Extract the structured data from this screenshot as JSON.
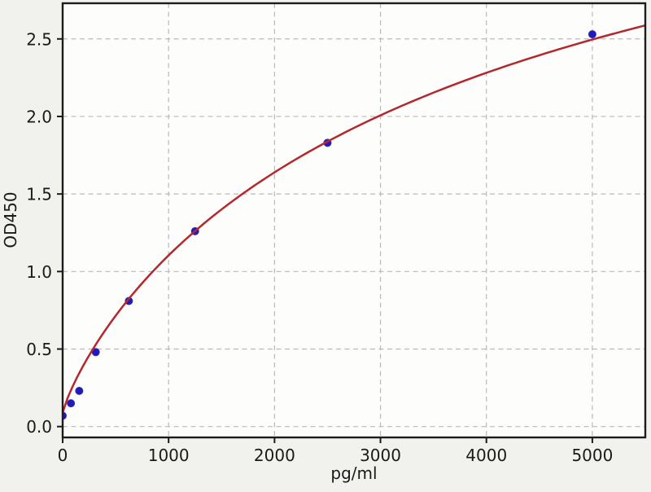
{
  "chart_data": {
    "type": "scatter",
    "xlabel": "pg/ml",
    "ylabel": "OD450",
    "xlim": [
      0,
      5500
    ],
    "ylim": [
      -0.07,
      2.73
    ],
    "grid": true,
    "legend": "none",
    "x_ticks": [
      {
        "value": 0,
        "label": "0"
      },
      {
        "value": 1000,
        "label": "1000"
      },
      {
        "value": 2000,
        "label": "2000"
      },
      {
        "value": 3000,
        "label": "3000"
      },
      {
        "value": 4000,
        "label": "4000"
      },
      {
        "value": 5000,
        "label": "5000"
      }
    ],
    "y_ticks": [
      {
        "value": 0.0,
        "label": "0.0"
      },
      {
        "value": 0.5,
        "label": "0.5"
      },
      {
        "value": 1.0,
        "label": "1.0"
      },
      {
        "value": 1.5,
        "label": "1.5"
      },
      {
        "value": 2.0,
        "label": "2.0"
      },
      {
        "value": 2.5,
        "label": "2.5"
      }
    ],
    "series": [
      {
        "name": "standard-points",
        "type": "scatter",
        "marker": "circle",
        "color": "#201ab8",
        "points": [
          {
            "x": 0,
            "y": 0.07
          },
          {
            "x": 78.1,
            "y": 0.15
          },
          {
            "x": 156.3,
            "y": 0.23
          },
          {
            "x": 312.5,
            "y": 0.48
          },
          {
            "x": 625,
            "y": 0.81
          },
          {
            "x": 1250,
            "y": 1.26
          },
          {
            "x": 2500,
            "y": 1.83
          },
          {
            "x": 5000,
            "y": 2.53
          }
        ]
      },
      {
        "name": "fit-curve",
        "type": "line",
        "color": "#b3282d",
        "fit_model": "4PL",
        "fit_params": {
          "a": 0.09,
          "b": 0.85,
          "c": 4318,
          "d": 4.62
        },
        "x_range": [
          0,
          5500
        ]
      }
    ],
    "colors": {
      "figure_bg": "#f1f1ee",
      "plot_bg": "#fdfdfc",
      "grid": "#b9b9b9",
      "axis": "#1c1c1c",
      "tick_label": "#1a1a1a",
      "point": "#201ab8",
      "curve": "#b3282d"
    }
  }
}
